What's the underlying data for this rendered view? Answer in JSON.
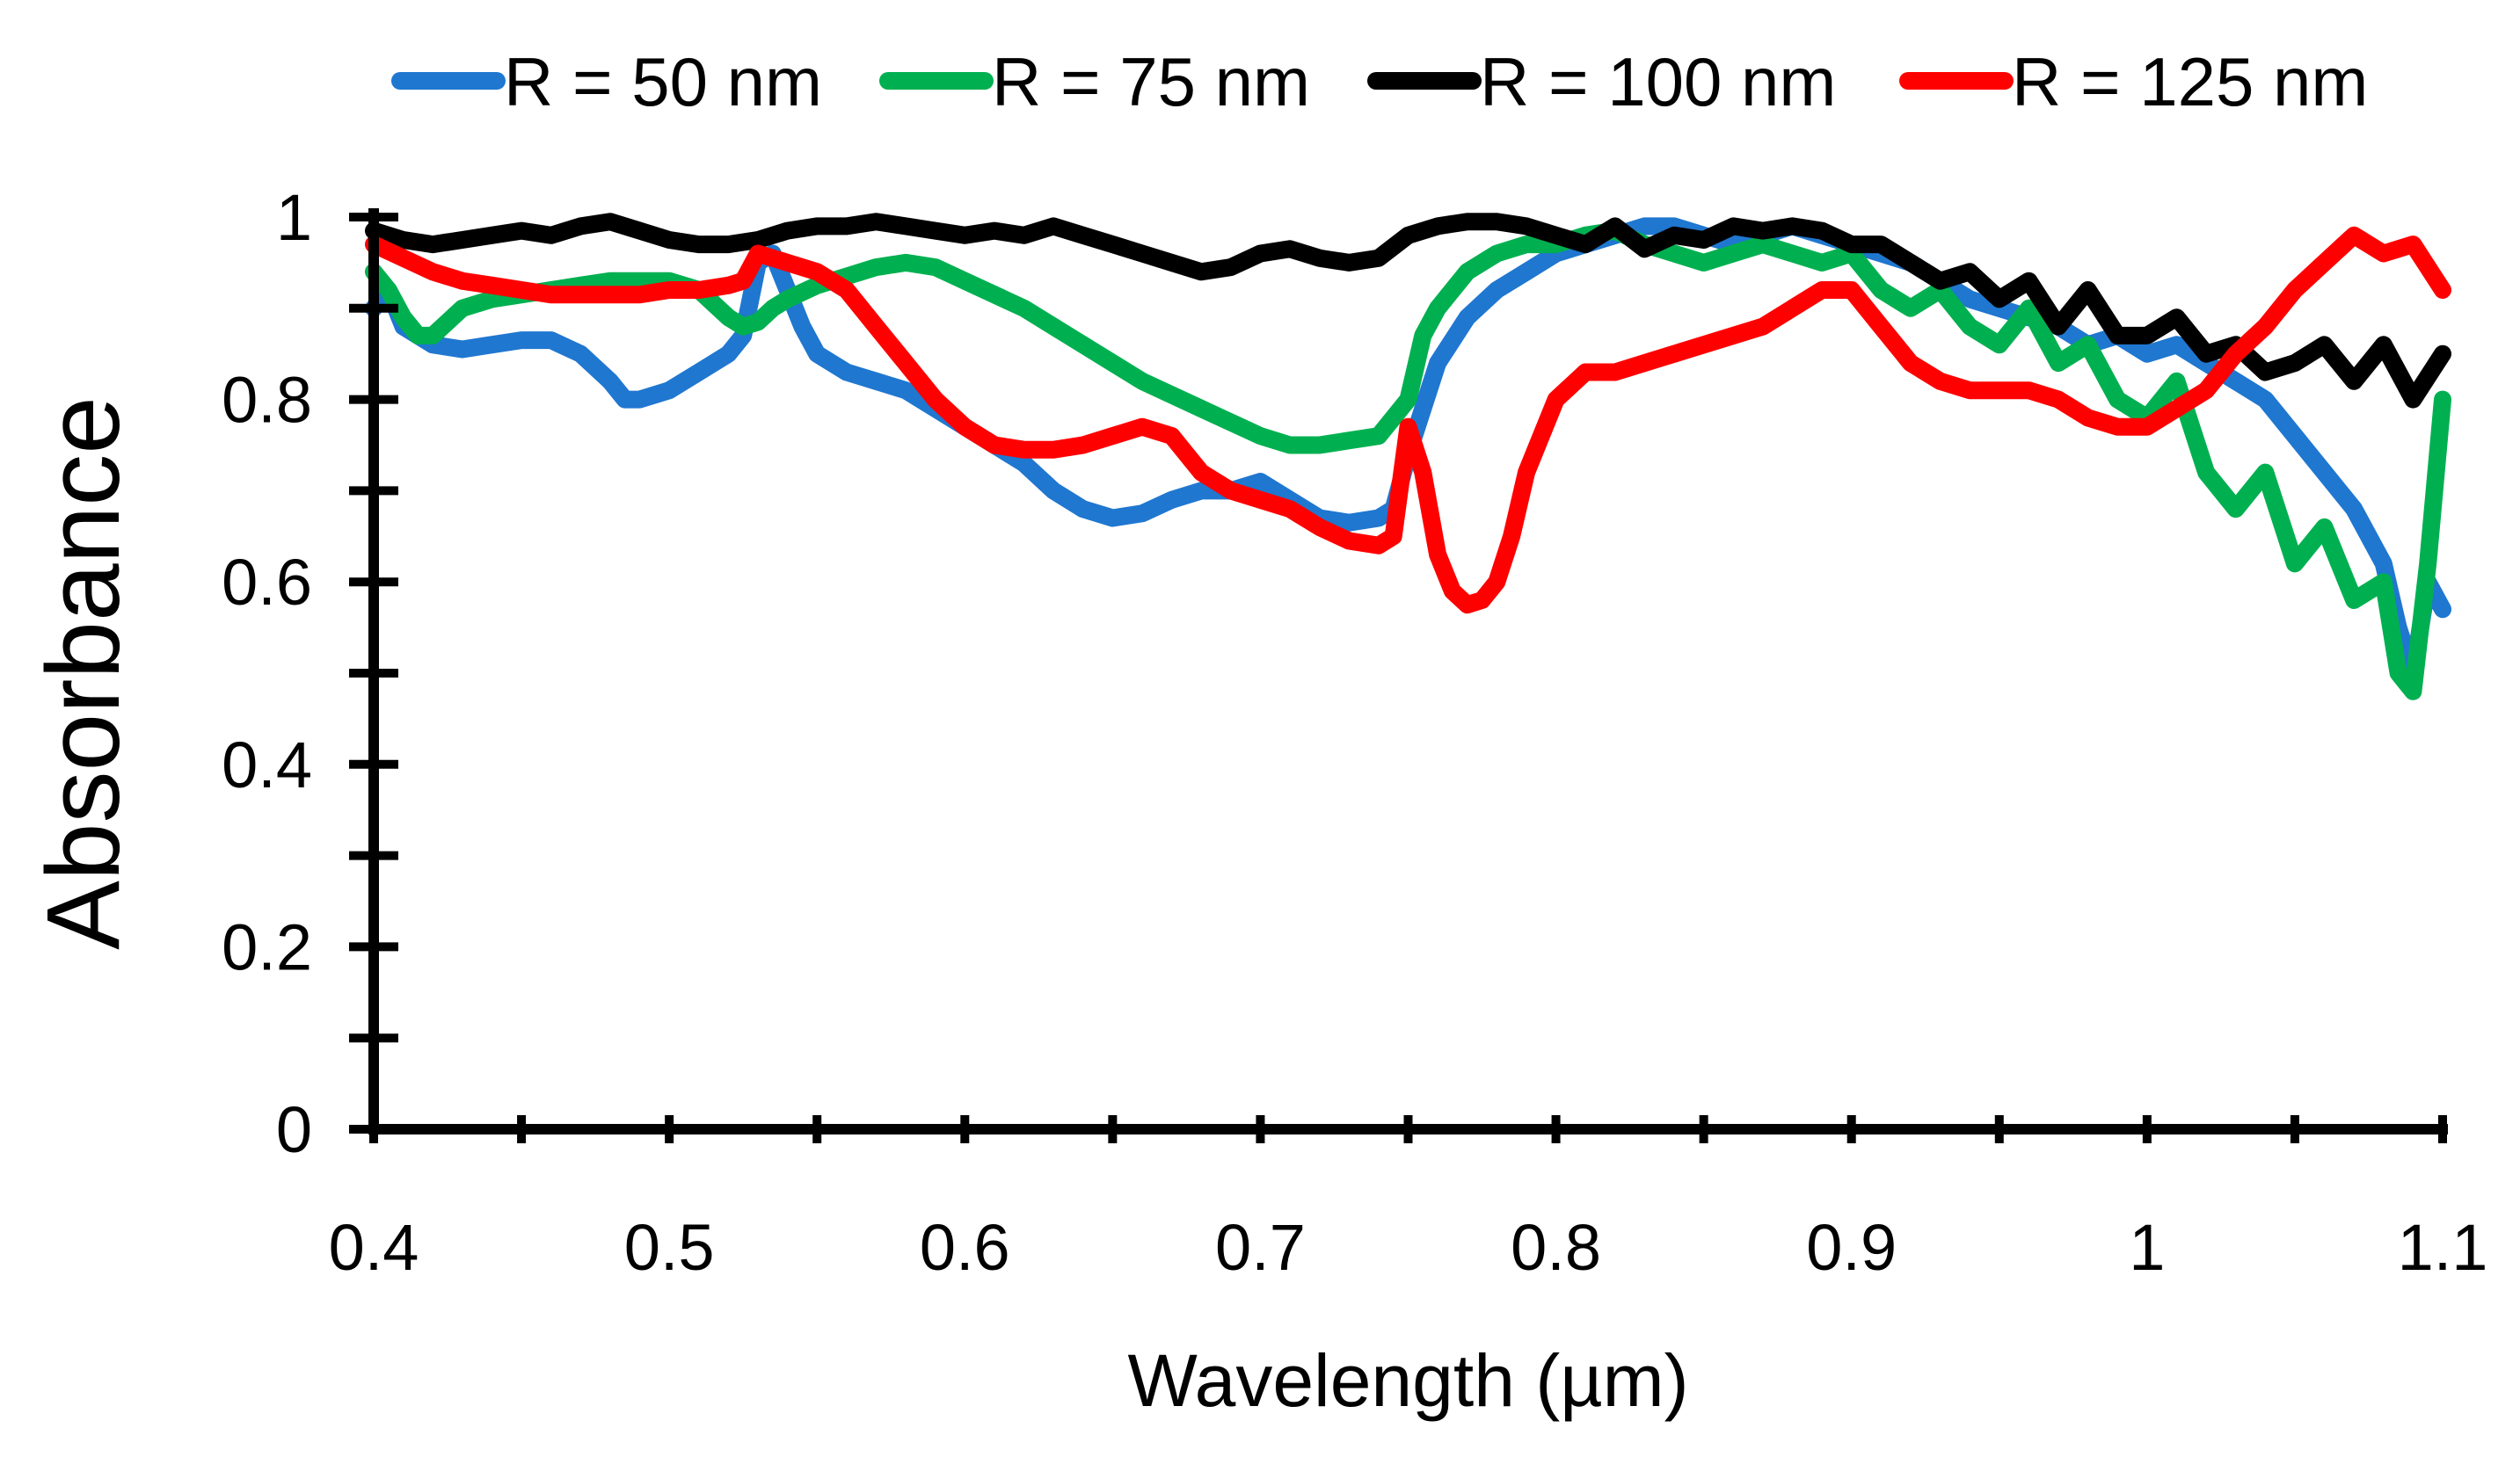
{
  "chart_data": {
    "type": "line",
    "title": "",
    "xlabel": "Wavelength (µm)",
    "ylabel": "Absorbance",
    "xlim": [
      0.4,
      1.1
    ],
    "ylim": [
      0,
      1
    ],
    "x_ticks": [
      0.4,
      0.5,
      0.6,
      0.7,
      0.8,
      0.9,
      1.0,
      1.1
    ],
    "x_tick_labels": [
      "0.4",
      "0.5",
      "0.6",
      "0.7",
      "0.8",
      "0.9",
      "1",
      "1.1"
    ],
    "y_ticks": [
      0,
      0.2,
      0.4,
      0.6,
      0.8,
      1
    ],
    "y_tick_labels": [
      "0",
      "0.2",
      "0.4",
      "0.6",
      "0.8",
      "1"
    ],
    "grid": false,
    "legend_position": "top",
    "series": [
      {
        "name": "R = 50 nm",
        "color": "#1f77d0",
        "x": [
          0.4,
          0.405,
          0.41,
          0.42,
          0.43,
          0.44,
          0.45,
          0.46,
          0.47,
          0.48,
          0.485,
          0.49,
          0.5,
          0.51,
          0.52,
          0.525,
          0.53,
          0.535,
          0.54,
          0.545,
          0.55,
          0.56,
          0.57,
          0.58,
          0.6,
          0.62,
          0.63,
          0.64,
          0.65,
          0.66,
          0.67,
          0.68,
          0.69,
          0.7,
          0.71,
          0.72,
          0.73,
          0.74,
          0.745,
          0.75,
          0.76,
          0.77,
          0.78,
          0.79,
          0.8,
          0.81,
          0.82,
          0.83,
          0.84,
          0.85,
          0.86,
          0.87,
          0.88,
          0.89,
          0.9,
          0.91,
          0.92,
          0.93,
          0.94,
          0.95,
          0.96,
          0.97,
          0.98,
          0.99,
          1.0,
          1.01,
          1.02,
          1.03,
          1.04,
          1.05,
          1.06,
          1.07,
          1.08,
          1.085,
          1.09,
          1.095,
          1.1
        ],
        "y": [
          0.9,
          0.92,
          0.88,
          0.86,
          0.855,
          0.86,
          0.865,
          0.865,
          0.85,
          0.82,
          0.8,
          0.8,
          0.81,
          0.83,
          0.85,
          0.87,
          0.95,
          0.96,
          0.92,
          0.88,
          0.85,
          0.83,
          0.82,
          0.81,
          0.77,
          0.73,
          0.7,
          0.68,
          0.67,
          0.675,
          0.69,
          0.7,
          0.7,
          0.71,
          0.69,
          0.67,
          0.665,
          0.67,
          0.68,
          0.74,
          0.84,
          0.89,
          0.92,
          0.94,
          0.96,
          0.97,
          0.98,
          0.99,
          0.99,
          0.98,
          0.97,
          0.98,
          0.99,
          0.98,
          0.97,
          0.96,
          0.95,
          0.93,
          0.91,
          0.9,
          0.89,
          0.88,
          0.86,
          0.87,
          0.85,
          0.86,
          0.84,
          0.82,
          0.8,
          0.76,
          0.72,
          0.68,
          0.62,
          0.55,
          0.5,
          0.6,
          0.57
        ]
      },
      {
        "name": "R = 75 nm",
        "color": "#00b050",
        "x": [
          0.4,
          0.405,
          0.41,
          0.415,
          0.42,
          0.43,
          0.44,
          0.45,
          0.46,
          0.47,
          0.48,
          0.49,
          0.5,
          0.51,
          0.52,
          0.525,
          0.53,
          0.535,
          0.54,
          0.55,
          0.56,
          0.57,
          0.58,
          0.59,
          0.6,
          0.62,
          0.64,
          0.66,
          0.68,
          0.7,
          0.71,
          0.72,
          0.73,
          0.74,
          0.75,
          0.755,
          0.76,
          0.77,
          0.78,
          0.79,
          0.8,
          0.81,
          0.82,
          0.83,
          0.84,
          0.85,
          0.86,
          0.87,
          0.88,
          0.89,
          0.9,
          0.91,
          0.92,
          0.93,
          0.94,
          0.95,
          0.96,
          0.97,
          0.98,
          0.99,
          1.0,
          1.01,
          1.02,
          1.03,
          1.04,
          1.05,
          1.06,
          1.07,
          1.08,
          1.085,
          1.09,
          1.095,
          1.1
        ],
        "y": [
          0.94,
          0.92,
          0.89,
          0.87,
          0.87,
          0.9,
          0.91,
          0.915,
          0.92,
          0.925,
          0.93,
          0.93,
          0.93,
          0.92,
          0.89,
          0.88,
          0.885,
          0.9,
          0.91,
          0.925,
          0.935,
          0.945,
          0.95,
          0.945,
          0.93,
          0.9,
          0.86,
          0.82,
          0.79,
          0.76,
          0.75,
          0.75,
          0.755,
          0.76,
          0.8,
          0.87,
          0.9,
          0.94,
          0.96,
          0.97,
          0.97,
          0.98,
          0.985,
          0.97,
          0.96,
          0.95,
          0.96,
          0.97,
          0.96,
          0.95,
          0.96,
          0.92,
          0.9,
          0.92,
          0.88,
          0.86,
          0.9,
          0.84,
          0.86,
          0.8,
          0.78,
          0.82,
          0.72,
          0.68,
          0.72,
          0.62,
          0.66,
          0.58,
          0.6,
          0.5,
          0.48,
          0.62,
          0.8
        ]
      },
      {
        "name": "R = 100 nm",
        "color": "#000000",
        "x": [
          0.4,
          0.41,
          0.42,
          0.43,
          0.44,
          0.45,
          0.46,
          0.47,
          0.48,
          0.49,
          0.5,
          0.51,
          0.52,
          0.53,
          0.54,
          0.55,
          0.56,
          0.57,
          0.58,
          0.59,
          0.6,
          0.61,
          0.62,
          0.63,
          0.64,
          0.65,
          0.66,
          0.67,
          0.68,
          0.69,
          0.7,
          0.71,
          0.72,
          0.73,
          0.74,
          0.75,
          0.76,
          0.77,
          0.78,
          0.79,
          0.8,
          0.81,
          0.82,
          0.83,
          0.84,
          0.85,
          0.86,
          0.87,
          0.88,
          0.89,
          0.9,
          0.91,
          0.92,
          0.93,
          0.94,
          0.95,
          0.96,
          0.97,
          0.98,
          0.99,
          1.0,
          1.01,
          1.02,
          1.03,
          1.04,
          1.05,
          1.06,
          1.07,
          1.08,
          1.09,
          1.1
        ],
        "y": [
          0.985,
          0.975,
          0.97,
          0.975,
          0.98,
          0.985,
          0.98,
          0.99,
          0.995,
          0.985,
          0.975,
          0.97,
          0.97,
          0.975,
          0.985,
          0.99,
          0.99,
          0.995,
          0.99,
          0.985,
          0.98,
          0.985,
          0.98,
          0.99,
          0.98,
          0.97,
          0.96,
          0.95,
          0.94,
          0.945,
          0.96,
          0.965,
          0.955,
          0.95,
          0.955,
          0.98,
          0.99,
          0.995,
          0.995,
          0.99,
          0.98,
          0.97,
          0.99,
          0.965,
          0.98,
          0.975,
          0.99,
          0.985,
          0.99,
          0.985,
          0.97,
          0.97,
          0.95,
          0.93,
          0.94,
          0.91,
          0.93,
          0.88,
          0.92,
          0.87,
          0.87,
          0.89,
          0.85,
          0.86,
          0.83,
          0.84,
          0.86,
          0.82,
          0.86,
          0.8,
          0.85
        ]
      },
      {
        "name": "R = 125 nm",
        "color": "#ff0000",
        "x": [
          0.4,
          0.41,
          0.42,
          0.43,
          0.44,
          0.45,
          0.46,
          0.47,
          0.48,
          0.49,
          0.5,
          0.51,
          0.52,
          0.525,
          0.53,
          0.54,
          0.55,
          0.56,
          0.57,
          0.58,
          0.59,
          0.6,
          0.61,
          0.62,
          0.63,
          0.64,
          0.65,
          0.66,
          0.67,
          0.68,
          0.69,
          0.7,
          0.71,
          0.72,
          0.73,
          0.74,
          0.745,
          0.75,
          0.755,
          0.76,
          0.765,
          0.77,
          0.775,
          0.78,
          0.785,
          0.79,
          0.8,
          0.81,
          0.82,
          0.83,
          0.84,
          0.85,
          0.86,
          0.87,
          0.88,
          0.89,
          0.9,
          0.91,
          0.92,
          0.93,
          0.94,
          0.95,
          0.96,
          0.97,
          0.98,
          0.99,
          1.0,
          1.01,
          1.02,
          1.03,
          1.04,
          1.05,
          1.06,
          1.07,
          1.08,
          1.09,
          1.1
        ],
        "y": [
          0.97,
          0.955,
          0.94,
          0.93,
          0.925,
          0.92,
          0.915,
          0.915,
          0.915,
          0.915,
          0.92,
          0.92,
          0.925,
          0.93,
          0.96,
          0.95,
          0.94,
          0.92,
          0.88,
          0.84,
          0.8,
          0.77,
          0.75,
          0.745,
          0.745,
          0.75,
          0.76,
          0.77,
          0.76,
          0.72,
          0.7,
          0.69,
          0.68,
          0.66,
          0.645,
          0.64,
          0.65,
          0.77,
          0.72,
          0.63,
          0.59,
          0.575,
          0.58,
          0.6,
          0.65,
          0.72,
          0.8,
          0.83,
          0.83,
          0.84,
          0.85,
          0.86,
          0.87,
          0.88,
          0.9,
          0.92,
          0.92,
          0.88,
          0.84,
          0.82,
          0.81,
          0.81,
          0.81,
          0.8,
          0.78,
          0.77,
          0.77,
          0.79,
          0.81,
          0.85,
          0.88,
          0.92,
          0.95,
          0.98,
          0.96,
          0.97,
          0.92
        ]
      }
    ]
  }
}
